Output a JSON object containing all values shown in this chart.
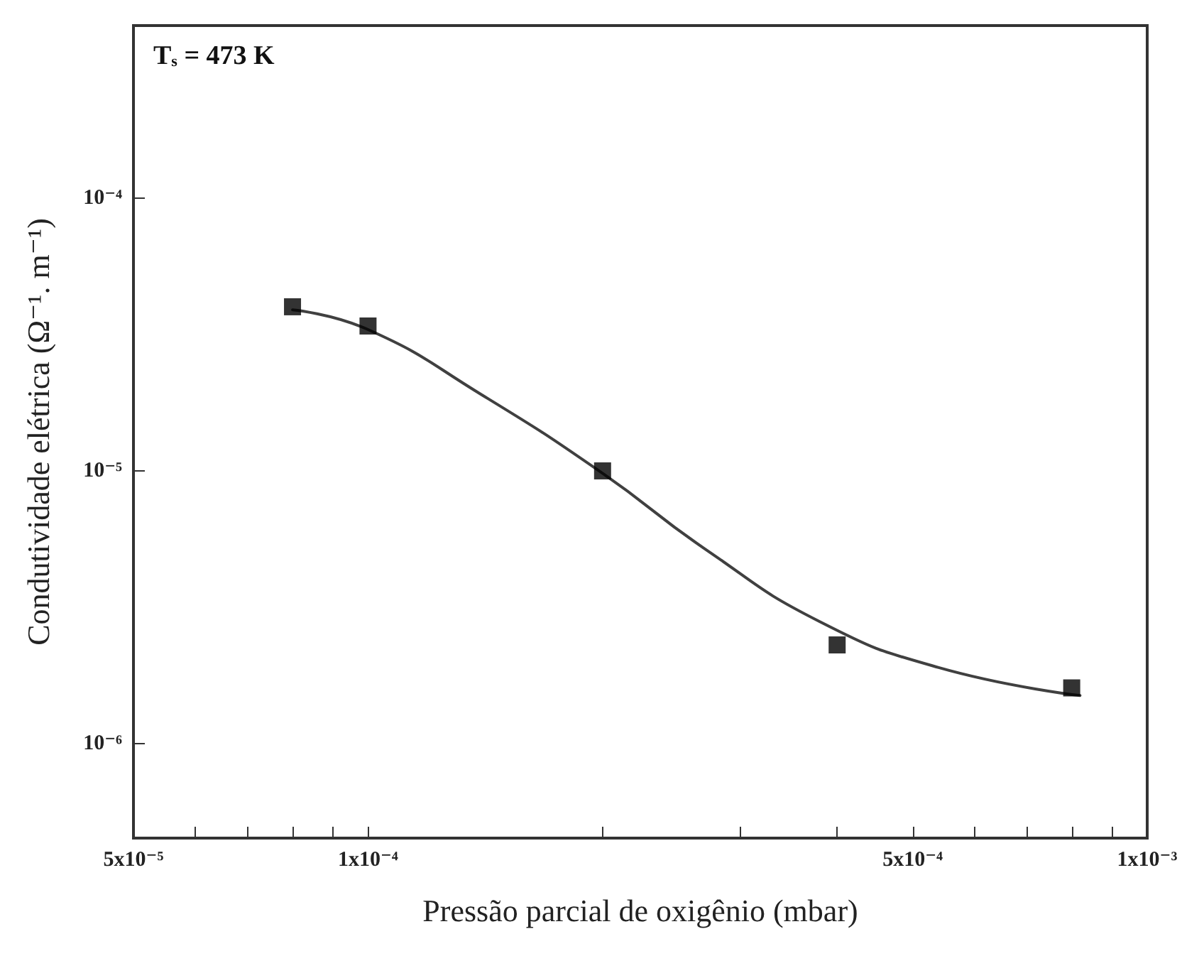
{
  "chart_data": {
    "type": "scatter",
    "xlabel": "Pressão parcial de oxigênio (mbar)",
    "ylabel": "Condutividade elétrica (Ω⁻¹. m⁻¹)",
    "annotations": [
      "T$_{s}$ = 473 K"
    ],
    "log": "xy",
    "grid": false,
    "marker": "square",
    "xlim": [
      5e-05,
      0.001
    ],
    "xticks": [
      {
        "value": 5e-05,
        "label": "5x10⁻⁵"
      },
      {
        "value": 6e-05,
        "label": null
      },
      {
        "value": 7e-05,
        "label": null
      },
      {
        "value": 8e-05,
        "label": null
      },
      {
        "value": 9e-05,
        "label": null
      },
      {
        "value": 0.0001,
        "label": "1x10⁻⁴"
      },
      {
        "value": 0.0002,
        "label": null
      },
      {
        "value": 0.0003,
        "label": null
      },
      {
        "value": 0.0004,
        "label": null
      },
      {
        "value": 0.0005,
        "label": "5x10⁻⁴"
      },
      {
        "value": 0.0006,
        "label": null
      },
      {
        "value": 0.0007,
        "label": null
      },
      {
        "value": 0.0008,
        "label": null
      },
      {
        "value": 0.0009,
        "label": null
      },
      {
        "value": 0.001,
        "label": "1x10⁻³"
      }
    ],
    "ylim": [
      4.5e-07,
      0.00043
    ],
    "yticks": [
      {
        "value": 1e-06,
        "label": "10⁻⁶"
      },
      {
        "value": 1e-05,
        "label": "10⁻⁵"
      },
      {
        "value": 0.0001,
        "label": "10⁻⁴"
      }
    ],
    "series": [
      {
        "color": "#000000",
        "x": [
          8e-05,
          0.0001,
          0.0002,
          0.0004,
          0.0008
        ],
        "values": [
          4e-05,
          3.4e-05,
          1e-05,
          2.3e-06,
          1.6e-06
        ]
      },
      {
        "type": "line",
        "color": "#404040",
        "marker": "none",
        "line_style": "solid",
        "x": [
          8e-05,
          0.0001,
          0.00014,
          0.0002,
          0.00027,
          0.00038,
          0.00054,
          0.00082
        ],
        "values": [
          3.9e-05,
          3.3e-05,
          1.9e-05,
          9.8e-06,
          5.2e-06,
          2.8e-06,
          1.9e-06,
          1.5e-06
        ]
      }
    ]
  }
}
